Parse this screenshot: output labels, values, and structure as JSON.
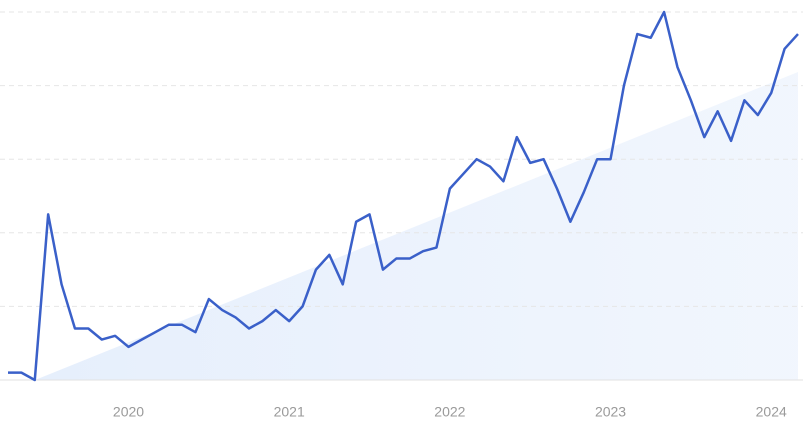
{
  "chart_data": {
    "type": "line",
    "categories": [
      null,
      null,
      null,
      null,
      null,
      null,
      null,
      null,
      null,
      "2020",
      null,
      null,
      null,
      null,
      null,
      null,
      null,
      null,
      null,
      null,
      null,
      "2021",
      null,
      null,
      null,
      null,
      null,
      null,
      null,
      null,
      null,
      null,
      null,
      "2022",
      null,
      null,
      null,
      null,
      null,
      null,
      null,
      null,
      null,
      null,
      null,
      "2023",
      null,
      null,
      null,
      null,
      null,
      null,
      null,
      null,
      null,
      null,
      null,
      "2024",
      null,
      null
    ],
    "series": [
      {
        "color": "#3a60c9",
        "values": [
          2,
          2,
          0,
          45,
          26,
          14,
          14,
          11,
          12,
          9,
          11,
          13,
          15,
          15,
          13,
          22,
          19,
          17,
          14,
          16,
          19,
          16,
          20,
          30,
          34,
          26,
          43,
          45,
          30,
          33,
          33,
          35,
          36,
          52,
          56,
          60,
          58,
          54,
          66,
          59,
          60,
          52,
          43,
          51,
          60,
          60,
          80,
          94,
          93,
          100,
          85,
          76,
          66,
          73,
          65,
          76,
          72,
          78,
          90,
          94
        ]
      }
    ],
    "ylim": [
      0,
      100
    ],
    "yticks": [
      0,
      20,
      40,
      60,
      80,
      100
    ],
    "grid": true
  }
}
